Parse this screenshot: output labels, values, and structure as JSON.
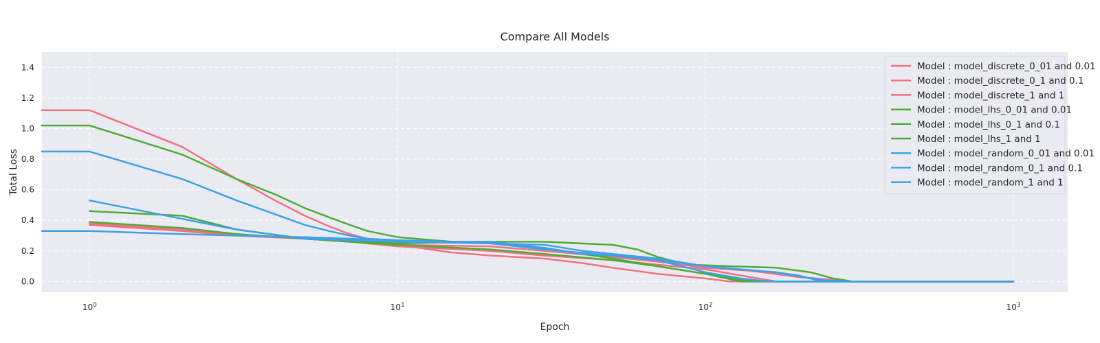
{
  "chart_data": {
    "type": "line",
    "title": "Compare All Models",
    "xlabel": "Epoch",
    "ylabel": "Total Loss",
    "xscale": "log",
    "xlim": [
      0.7,
      1500
    ],
    "ylim": [
      -0.07,
      1.5
    ],
    "xticks": [
      {
        "base": "10",
        "exp": "0",
        "value": 1
      },
      {
        "base": "10",
        "exp": "1",
        "value": 10
      },
      {
        "base": "10",
        "exp": "2",
        "value": 100
      },
      {
        "base": "10",
        "exp": "3",
        "value": 1000
      }
    ],
    "yticks": [
      {
        "value": 0.0,
        "label": "0.0"
      },
      {
        "value": 0.2,
        "label": "0.2"
      },
      {
        "value": 0.4,
        "label": "0.4"
      },
      {
        "value": 0.6,
        "label": "0.6"
      },
      {
        "value": 0.8,
        "label": "0.8"
      },
      {
        "value": 1.0,
        "label": "1.0"
      },
      {
        "value": 1.2,
        "label": "1.2"
      },
      {
        "value": 1.4,
        "label": "1.4"
      }
    ],
    "grid": true,
    "legend_position": "top-right",
    "colors": {
      "discrete": "#f07182",
      "lhs": "#4eac36",
      "random": "#3ea0e8",
      "plot_bg": "#eaeaf2"
    },
    "series": [
      {
        "name": "Model : model_discrete_0_01 and 0.01",
        "color": "#f07182",
        "x": [
          1,
          2,
          3,
          5,
          7,
          10,
          20,
          30,
          50,
          70,
          100,
          130,
          170,
          250,
          400,
          1000
        ],
        "y": [
          0.37,
          0.33,
          0.3,
          0.28,
          0.26,
          0.23,
          0.2,
          0.17,
          0.14,
          0.11,
          0.08,
          0.04,
          0.0,
          0.0,
          0.0,
          0.0
        ]
      },
      {
        "name": "Model : model_discrete_0_1 and 0.1",
        "color": "#f07182",
        "x": [
          1,
          2,
          3,
          5,
          7,
          10,
          20,
          30,
          50,
          70,
          100,
          140,
          200,
          300,
          1000
        ],
        "y": [
          0.38,
          0.34,
          0.31,
          0.28,
          0.26,
          0.24,
          0.23,
          0.2,
          0.16,
          0.13,
          0.09,
          0.07,
          0.03,
          0.0,
          0.0
        ]
      },
      {
        "name": "Model : model_discrete_1 and 1",
        "color": "#f07182",
        "x": [
          0.7,
          1,
          2,
          3,
          4,
          5,
          6,
          7,
          8,
          10,
          15,
          20,
          30,
          40,
          50,
          70,
          100,
          120,
          150,
          200,
          1000
        ],
        "y": [
          1.12,
          1.12,
          0.88,
          0.67,
          0.53,
          0.43,
          0.36,
          0.31,
          0.28,
          0.24,
          0.19,
          0.17,
          0.15,
          0.12,
          0.09,
          0.05,
          0.02,
          0.0,
          0.0,
          0.0,
          0.0
        ]
      },
      {
        "name": "Model : model_lhs_0_01 and 0.01",
        "color": "#4eac36",
        "x": [
          1,
          2,
          3,
          5,
          7,
          10,
          20,
          30,
          50,
          60,
          70,
          80,
          90,
          120,
          170,
          220,
          260,
          300,
          1000
        ],
        "y": [
          0.46,
          0.43,
          0.34,
          0.28,
          0.26,
          0.25,
          0.26,
          0.26,
          0.24,
          0.21,
          0.16,
          0.13,
          0.11,
          0.1,
          0.09,
          0.06,
          0.02,
          0.0,
          0.0
        ]
      },
      {
        "name": "Model : model_lhs_0_1 and 0.1",
        "color": "#4eac36",
        "x": [
          1,
          2,
          3,
          5,
          7,
          10,
          20,
          30,
          50,
          70,
          100,
          130,
          170,
          250,
          1000
        ],
        "y": [
          0.39,
          0.35,
          0.31,
          0.28,
          0.26,
          0.24,
          0.21,
          0.18,
          0.14,
          0.1,
          0.05,
          0.01,
          0.0,
          0.0,
          0.0
        ]
      },
      {
        "name": "Model : model_lhs_1 and 1",
        "color": "#4eac36",
        "x": [
          0.7,
          1,
          2,
          3,
          4,
          5,
          6,
          7,
          8,
          10,
          15,
          20,
          30,
          50,
          70,
          100,
          130,
          200,
          1000
        ],
        "y": [
          1.02,
          1.02,
          0.83,
          0.67,
          0.57,
          0.48,
          0.42,
          0.37,
          0.33,
          0.29,
          0.26,
          0.25,
          0.22,
          0.15,
          0.1,
          0.05,
          0.0,
          0.0,
          0.0
        ]
      },
      {
        "name": "Model : model_random_0_01 and 0.01",
        "color": "#3ea0e8",
        "x": [
          1,
          2,
          3,
          5,
          7,
          10,
          20,
          30,
          40,
          50,
          70,
          100,
          130,
          170,
          200,
          230,
          300,
          1000
        ],
        "y": [
          0.53,
          0.41,
          0.34,
          0.28,
          0.27,
          0.26,
          0.25,
          0.24,
          0.2,
          0.18,
          0.15,
          0.1,
          0.08,
          0.06,
          0.04,
          0.01,
          0.0,
          0.0
        ]
      },
      {
        "name": "Model : model_random_0_1 and 0.1",
        "color": "#3ea0e8",
        "x": [
          0.7,
          1,
          2,
          3,
          5,
          7,
          10,
          20,
          30,
          50,
          70,
          100,
          130,
          170,
          220,
          260,
          1000
        ],
        "y": [
          0.33,
          0.33,
          0.31,
          0.3,
          0.29,
          0.28,
          0.27,
          0.25,
          0.21,
          0.17,
          0.14,
          0.1,
          0.08,
          0.06,
          0.02,
          0.0,
          0.0
        ]
      },
      {
        "name": "Model : model_random_1 and 1",
        "color": "#3ea0e8",
        "x": [
          0.7,
          1,
          2,
          3,
          4,
          5,
          6,
          7,
          8,
          10,
          15,
          20,
          30,
          40,
          50,
          70,
          100,
          130,
          160,
          200,
          1000
        ],
        "y": [
          0.85,
          0.85,
          0.67,
          0.53,
          0.44,
          0.37,
          0.33,
          0.3,
          0.28,
          0.27,
          0.26,
          0.26,
          0.22,
          0.18,
          0.17,
          0.14,
          0.06,
          0.02,
          0.0,
          0.0,
          0.0
        ]
      }
    ]
  }
}
